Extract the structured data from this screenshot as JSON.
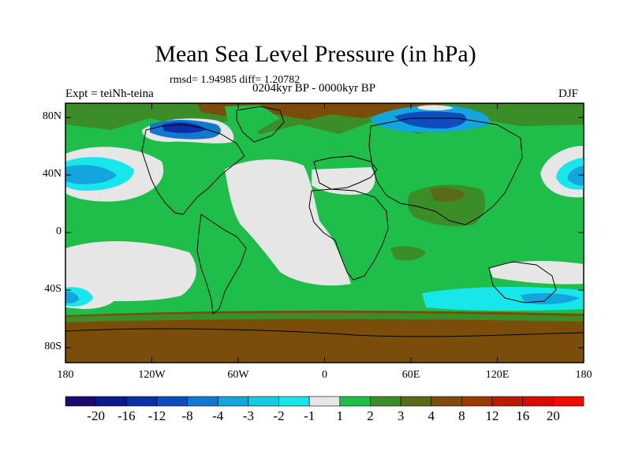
{
  "title": "Mean Sea Level Pressure (in hPa)",
  "stats": "rmsd= 1.94985  diff= 1.20782",
  "experiment": "Expt = teiNh-teina",
  "period": "0204kyr BP - 0000kyr BP",
  "season": "DJF",
  "lat_labels": [
    "80N",
    "40N",
    "0",
    "40S",
    "80S"
  ],
  "lon_labels": [
    "180",
    "120W",
    "60W",
    "0",
    "60E",
    "120E",
    "180"
  ],
  "colorbar": {
    "labels": [
      "-20",
      "-16",
      "-12",
      "-8",
      "-4",
      "-3",
      "-2",
      "-1",
      "1",
      "2",
      "3",
      "4",
      "8",
      "12",
      "16",
      "20"
    ],
    "colors": [
      "#1e0a6e",
      "#0a1a8c",
      "#0c2fa8",
      "#0e4cbf",
      "#1278cf",
      "#14a4de",
      "#14cbe6",
      "#17e6ea",
      "#e6e6e6",
      "#1fbe4a",
      "#3a8d27",
      "#5a6a16",
      "#7a4e0a",
      "#9a3a06",
      "#b81c04",
      "#d80a04",
      "#f00a02"
    ]
  },
  "colors": {
    "land_coast": "#000000",
    "neutral": "#e6e6e6",
    "pos_weak": "#1fbe4a",
    "pos_mid": "#3a8d27",
    "pos_strong": "#7a4e0a",
    "neg_weak": "#17e6ea",
    "neg_mid": "#14a4de",
    "neg_strong": "#0e4cbf"
  }
}
